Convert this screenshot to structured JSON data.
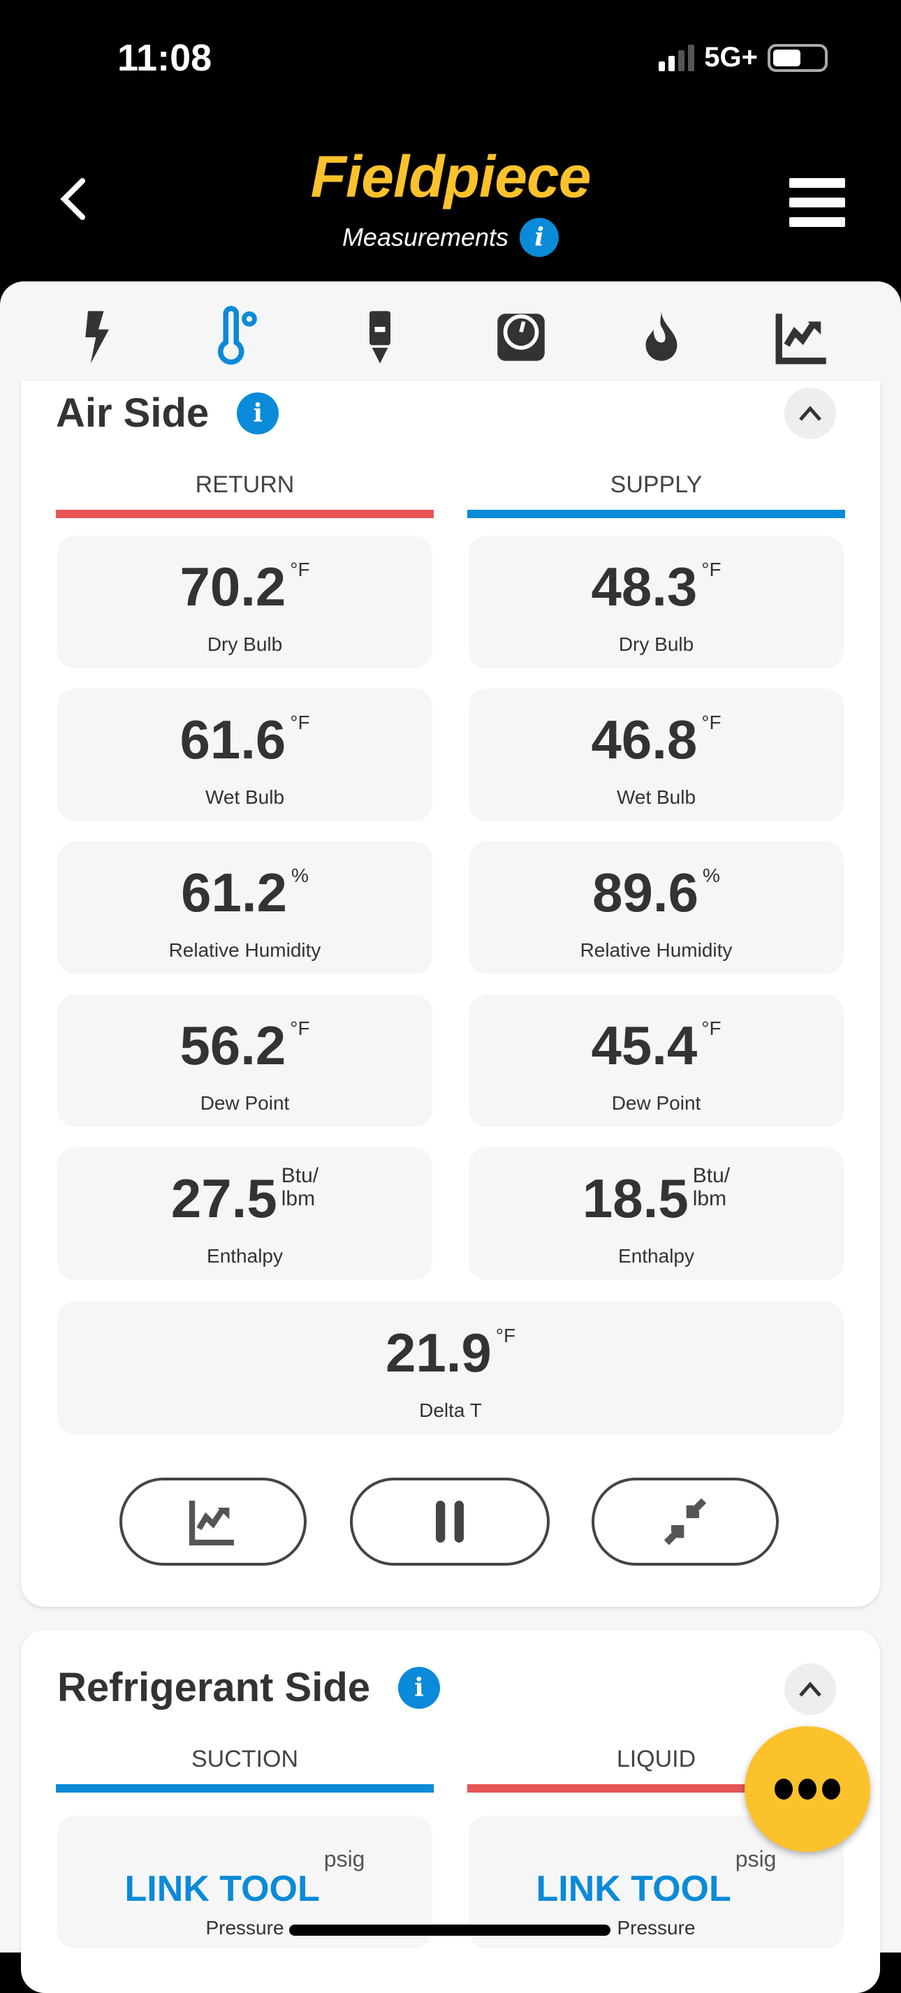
{
  "status": {
    "time": "11:08",
    "network": "5G+"
  },
  "header": {
    "brand": "Fieldpiece",
    "subtitle": "Measurements"
  },
  "iconbar": [
    "lightning-icon",
    "thermometer-icon",
    "probe-icon",
    "gauge-icon",
    "flame-icon",
    "chart-icon"
  ],
  "accent": {
    "red": "#e85556",
    "blue": "#0a8ad8",
    "yellow": "#fcc22c"
  },
  "air": {
    "title": "Air Side",
    "return_label": "RETURN",
    "supply_label": "SUPPLY",
    "rows": [
      {
        "label": "Dry Bulb",
        "return": "70.2",
        "supply": "48.3",
        "unit": "°F"
      },
      {
        "label": "Wet Bulb",
        "return": "61.6",
        "supply": "46.8",
        "unit": "°F"
      },
      {
        "label": "Relative Humidity",
        "return": "61.2",
        "supply": "89.6",
        "unit": "%"
      },
      {
        "label": "Dew Point",
        "return": "56.2",
        "supply": "45.4",
        "unit": "°F"
      },
      {
        "label": "Enthalpy",
        "return": "27.5",
        "supply": "18.5",
        "unit_a": "Btu/",
        "unit_b": "lbm"
      }
    ],
    "delta": {
      "label": "Delta T",
      "value": "21.9",
      "unit": "°F"
    }
  },
  "refrigerant": {
    "title": "Refrigerant Side",
    "suction_label": "SUCTION",
    "liquid_label": "LIQUID",
    "tiles": [
      {
        "value": "LINK TOOL",
        "unit": "psig",
        "label": "Pressure"
      },
      {
        "value": "LINK TOOL",
        "unit": "psig",
        "label": "Pressure"
      }
    ]
  }
}
